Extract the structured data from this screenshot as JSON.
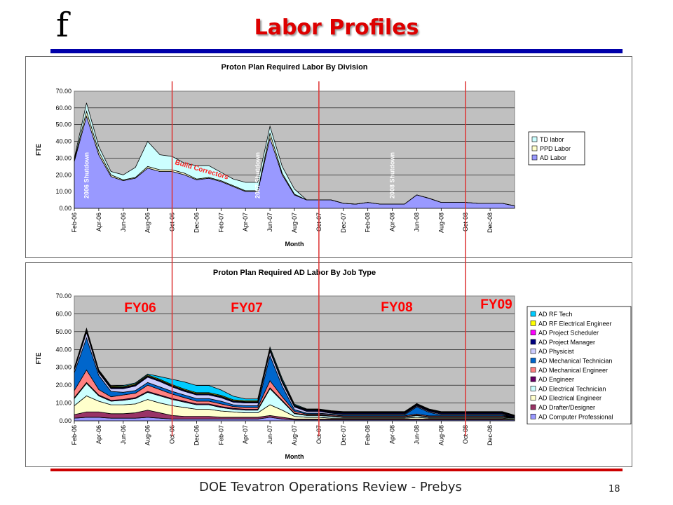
{
  "slide": {
    "logo": "f",
    "title": "Labor Profiles",
    "footer": "DOE Tevatron Operations Review - Prebys",
    "page_number": "18"
  },
  "fiscal_year_labels": [
    "FY06",
    "FY07",
    "FY08",
    "FY09"
  ],
  "fy_divider_color": "#dd3333",
  "chart_data": [
    {
      "type": "area",
      "stacked": true,
      "title": "Proton Plan Required Labor By Division",
      "xlabel": "Month",
      "ylabel": "FTE",
      "ylim": [
        0,
        70
      ],
      "yticks": [
        "0.00",
        "10.00",
        "20.00",
        "30.00",
        "40.00",
        "50.00",
        "60.00",
        "70.00"
      ],
      "plot_bg": "#c0c0c0",
      "legend_position": "right",
      "months": [
        "Feb-06",
        "Mar-06",
        "Apr-06",
        "May-06",
        "Jun-06",
        "Jul-06",
        "Aug-06",
        "Sep-06",
        "Oct-06",
        "Nov-06",
        "Dec-06",
        "Jan-07",
        "Feb-07",
        "Mar-07",
        "Apr-07",
        "May-07",
        "Jun-07",
        "Jul-07",
        "Aug-07",
        "Sep-07",
        "Oct-07",
        "Nov-07",
        "Dec-07",
        "Jan-08",
        "Feb-08",
        "Mar-08",
        "Apr-08",
        "May-08",
        "Jun-08",
        "Jul-08",
        "Aug-08",
        "Sep-08",
        "Oct-08",
        "Nov-08",
        "Dec-08",
        "Jan-09",
        "Feb-09"
      ],
      "tick_labels": [
        "Feb-06",
        "Apr-06",
        "Jun-06",
        "Aug-06",
        "Oct-06",
        "Dec-06",
        "Feb-07",
        "Apr-07",
        "Jun-07",
        "Aug-07",
        "Oct-07",
        "Dec-07",
        "Feb-08",
        "Apr-08",
        "Jun-08",
        "Aug-08",
        "Oct-08",
        "Dec-08"
      ],
      "series": [
        {
          "name": "AD Labor",
          "color": "#9999ff",
          "values": [
            28,
            55,
            32,
            19,
            16.5,
            18,
            24,
            22,
            22,
            20,
            17,
            18,
            16,
            13,
            10,
            10,
            42,
            20,
            8,
            5,
            5,
            5,
            3,
            2.5,
            3.5,
            2.5,
            2.5,
            2.5,
            8,
            6,
            3.5,
            3.5,
            3.5,
            3,
            3,
            3,
            1.5
          ]
        },
        {
          "name": "PPD Labor",
          "color": "#ffffcc",
          "values": [
            1,
            3,
            2,
            1,
            0.5,
            0.5,
            1,
            1,
            1,
            1,
            0.5,
            0.5,
            0.5,
            0.5,
            0.5,
            0.5,
            3,
            1,
            0.5,
            0,
            0,
            0,
            0,
            0,
            0,
            0,
            0,
            0,
            0,
            0,
            0,
            0,
            0,
            0,
            0,
            0,
            0
          ]
        },
        {
          "name": "TD labor",
          "color": "#ccffff",
          "values": [
            1,
            5,
            3,
            2,
            3,
            6,
            15,
            9,
            8,
            6,
            8,
            7,
            5,
            4,
            5,
            5,
            4,
            4,
            3,
            0,
            0,
            0,
            0,
            0,
            0,
            0,
            0,
            0,
            0,
            0,
            0,
            0,
            0,
            0,
            0,
            0,
            0
          ]
        }
      ],
      "annotations": [
        {
          "text": "2006 Shutdown",
          "month": "Mar-06",
          "rotated": true
        },
        {
          "text": "Build Correctors",
          "month": "Nov-06",
          "rotated": true
        },
        {
          "text": "2007 Shutdown",
          "month": "May-07",
          "rotated": true
        },
        {
          "text": "2008 Shutdown",
          "month": "Apr-08",
          "rotated": true
        }
      ]
    },
    {
      "type": "area",
      "stacked": true,
      "title": "Proton Plan Required AD Labor By Job Type",
      "xlabel": "Month",
      "ylabel": "FTE",
      "ylim": [
        0,
        70
      ],
      "yticks": [
        "0.00",
        "10.00",
        "20.00",
        "30.00",
        "40.00",
        "50.00",
        "60.00",
        "70.00"
      ],
      "plot_bg": "#c0c0c0",
      "legend_position": "right",
      "months": [
        "Feb-06",
        "Mar-06",
        "Apr-06",
        "May-06",
        "Jun-06",
        "Jul-06",
        "Aug-06",
        "Sep-06",
        "Oct-06",
        "Nov-06",
        "Dec-06",
        "Jan-07",
        "Feb-07",
        "Mar-07",
        "Apr-07",
        "May-07",
        "Jun-07",
        "Jul-07",
        "Aug-07",
        "Sep-07",
        "Oct-07",
        "Nov-07",
        "Dec-07",
        "Jan-08",
        "Feb-08",
        "Mar-08",
        "Apr-08",
        "May-08",
        "Jun-08",
        "Jul-08",
        "Aug-08",
        "Sep-08",
        "Oct-08",
        "Nov-08",
        "Dec-08",
        "Jan-09",
        "Feb-09"
      ],
      "tick_labels": [
        "Feb-06",
        "Apr-06",
        "Jun-06",
        "Aug-06",
        "Oct-06",
        "Dec-06",
        "Feb-07",
        "Apr-07",
        "Jun-07",
        "Aug-07",
        "Oct-07",
        "Dec-07",
        "Feb-08",
        "Apr-08",
        "Jun-08",
        "Aug-08",
        "Oct-08",
        "Dec-08"
      ],
      "series": [
        {
          "name": "AD Computer Professional",
          "color": "#9999ff",
          "values": [
            1.5,
            2,
            2,
            1.5,
            1.5,
            1.5,
            2,
            1.5,
            1,
            1,
            1,
            1,
            1,
            1,
            1,
            1,
            2,
            1,
            0.5,
            0.5,
            0.5,
            0.5,
            0.5,
            0.5,
            0.5,
            0.5,
            0.5,
            0.5,
            0.5,
            0.5,
            0.5,
            0.5,
            0.5,
            0.5,
            0.5,
            0.5,
            0.5
          ]
        },
        {
          "name": "AD Drafter/Designer",
          "color": "#993366",
          "values": [
            2,
            3,
            3,
            2.5,
            2.5,
            3,
            4,
            3,
            2,
            1.5,
            1.5,
            1.5,
            1,
            1,
            1,
            1,
            1,
            1,
            0.5,
            0.5,
            0.5,
            0.5,
            0.5,
            0.5,
            0.5,
            0.5,
            0.5,
            0.5,
            0.5,
            0.5,
            0.5,
            0.5,
            0.5,
            0.5,
            0.5,
            0.5,
            0
          ]
        },
        {
          "name": "AD Electrical Engineer",
          "color": "#ffffcc",
          "values": [
            5,
            9,
            6,
            5,
            5,
            5,
            6,
            5.5,
            5.5,
            5,
            4,
            4,
            3.5,
            3,
            2.5,
            2.5,
            6,
            4,
            1.5,
            1,
            1,
            0.5,
            0.5,
            0.5,
            0.5,
            0.5,
            0.5,
            0.5,
            1,
            0.5,
            0.5,
            0.5,
            0.5,
            0.5,
            0.5,
            0.5,
            0.5
          ]
        },
        {
          "name": "AD Electrical Technician",
          "color": "#ccffff",
          "values": [
            4,
            7,
            3,
            2,
            2.5,
            3,
            4,
            4,
            3.5,
            3,
            2.5,
            2.5,
            2,
            1.5,
            1.5,
            1.5,
            9,
            5,
            1.5,
            1,
            1,
            1,
            0.5,
            0.5,
            0.5,
            0.5,
            0.5,
            0.5,
            1,
            0.5,
            0.5,
            0.5,
            0.5,
            0.5,
            0.5,
            0.5,
            0.5
          ]
        },
        {
          "name": "AD Engineer",
          "color": "#660066",
          "values": [
            0.5,
            0.5,
            0.5,
            0.5,
            0.5,
            0.5,
            0.5,
            0.5,
            0.5,
            0.5,
            0.5,
            0.5,
            0.5,
            0.5,
            0.5,
            0.5,
            0.5,
            0.5,
            0.3,
            0.3,
            0.3,
            0.3,
            0.3,
            0.3,
            0.3,
            0.3,
            0.3,
            0.3,
            0.3,
            0.3,
            0.3,
            0.3,
            0.3,
            0.3,
            0.3,
            0.3,
            0.3
          ]
        },
        {
          "name": "AD Mechanical Engineer",
          "color": "#ff8080",
          "values": [
            4,
            7,
            3,
            2,
            2.5,
            2.5,
            3.5,
            3,
            2.5,
            2,
            1.5,
            1.5,
            1.5,
            1,
            1,
            1,
            4,
            2,
            1,
            0.5,
            0.5,
            0.5,
            0.5,
            0.5,
            0.5,
            0.5,
            0.5,
            0.5,
            0.5,
            0.5,
            0.5,
            0.5,
            0.5,
            0.5,
            0.5,
            0.5,
            0
          ]
        },
        {
          "name": "AD Mechanical Technician",
          "color": "#0066cc",
          "values": [
            10,
            18,
            8,
            3,
            1.5,
            1.5,
            1.5,
            1.5,
            1.5,
            1.5,
            1.5,
            1.5,
            1.5,
            1,
            1,
            1,
            14,
            6,
            1,
            0.5,
            0.5,
            0.5,
            0.5,
            0.5,
            0.5,
            0.5,
            0.5,
            0.5,
            4,
            2,
            0.5,
            0.5,
            0.5,
            0.5,
            0.5,
            0.5,
            0
          ]
        },
        {
          "name": "AD Physicist",
          "color": "#ccccff",
          "values": [
            1.5,
            3,
            1.5,
            1.5,
            2,
            2.5,
            3,
            3,
            2.5,
            2,
            2,
            2,
            2,
            1.5,
            1.5,
            1.5,
            2.5,
            2,
            1.5,
            1,
            1,
            0.5,
            0.5,
            0.5,
            0.5,
            0.5,
            0.5,
            0.5,
            0.5,
            0.5,
            0.5,
            0.5,
            0.5,
            0.5,
            0.5,
            0.5,
            0
          ]
        },
        {
          "name": "AD Project Manager",
          "color": "#000080",
          "values": [
            0.5,
            0.5,
            0.5,
            0.5,
            0.5,
            0.5,
            0.5,
            0.5,
            0.5,
            0.5,
            0.5,
            0.5,
            0.5,
            0.5,
            0.5,
            0.5,
            0.5,
            0.5,
            0.5,
            0.5,
            0.5,
            0.5,
            0.5,
            0.5,
            0.5,
            0.5,
            0.5,
            0.5,
            0.5,
            0.5,
            0.5,
            0.5,
            0.5,
            0.5,
            0.5,
            0.5,
            0.5
          ]
        },
        {
          "name": "AD Project Scheduler",
          "color": "#ff00ff",
          "values": [
            0.3,
            0.3,
            0.3,
            0.3,
            0.3,
            0.3,
            0.3,
            0.3,
            0.3,
            0.3,
            0.3,
            0.3,
            0.3,
            0.3,
            0.3,
            0.3,
            0.3,
            0.3,
            0.3,
            0.3,
            0.3,
            0.3,
            0.3,
            0.3,
            0.3,
            0.3,
            0.3,
            0.3,
            0.3,
            0.3,
            0.3,
            0.3,
            0.3,
            0.3,
            0.3,
            0.3,
            0.3
          ]
        },
        {
          "name": "AD RF Electrical Engineer",
          "color": "#ffff00",
          "values": [
            0.5,
            1,
            0.5,
            0.5,
            0.5,
            0.5,
            0.5,
            0.5,
            0.5,
            0.5,
            0.5,
            0.5,
            0.5,
            0.5,
            0.5,
            0.5,
            0.5,
            0.5,
            0.3,
            0.3,
            0.3,
            0.3,
            0.3,
            0.3,
            0.3,
            0.3,
            0.3,
            0.3,
            0.3,
            0.3,
            0.3,
            0.3,
            0.3,
            0.3,
            0.3,
            0.3,
            0.3
          ]
        },
        {
          "name": "AD RF Tech",
          "color": "#00ccff",
          "values": [
            0,
            0.5,
            0.3,
            0.3,
            0.5,
            0.5,
            0.5,
            1.5,
            3,
            4,
            4,
            4,
            3,
            2,
            1,
            1,
            1,
            1,
            0.5,
            0.3,
            0.3,
            0.3,
            0.3,
            0.3,
            0.3,
            0.3,
            0.3,
            0.3,
            0.3,
            0.3,
            0.3,
            0.3,
            0.3,
            0.3,
            0.3,
            0.3,
            0.3
          ]
        }
      ]
    }
  ]
}
